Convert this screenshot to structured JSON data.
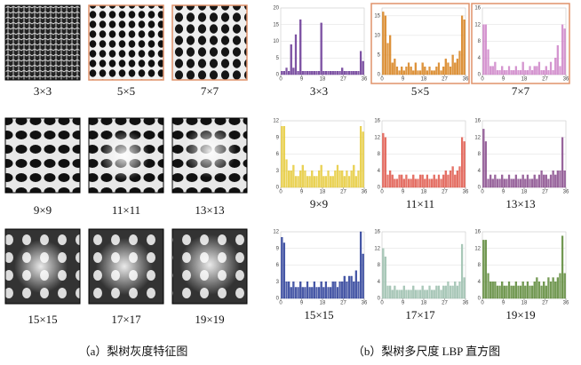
{
  "images": [
    "3×3",
    "5×5",
    "7×7",
    "9×9",
    "11×11",
    "13×13",
    "15×15",
    "17×17",
    "19×19"
  ],
  "captions": [
    "（a）梨树灰度特征图",
    "（b）梨树多尺度 LBP 直方图"
  ],
  "chart_data": [
    {
      "type": "histogram",
      "title": "3×3",
      "color": "#6b3a96",
      "bins": [
        0,
        1,
        2,
        3,
        4,
        5,
        6,
        7,
        8,
        9,
        10,
        11,
        12,
        13,
        14,
        15,
        16,
        17,
        18,
        19,
        20,
        21,
        22,
        23,
        24,
        25,
        26,
        27,
        28,
        29,
        30,
        31,
        32,
        33,
        34,
        35,
        36
      ],
      "values": [
        1,
        1,
        2,
        1,
        9,
        2,
        12,
        1,
        16.5,
        1,
        1,
        1,
        1,
        1,
        1,
        1,
        1,
        15.5,
        1,
        1,
        1,
        1,
        1,
        1,
        1,
        1,
        2,
        1,
        1,
        1,
        1,
        1,
        1,
        1,
        7,
        4
      ],
      "xlim": [
        0,
        36
      ],
      "xticks": [
        0,
        9,
        18,
        27,
        36
      ],
      "ylim": [
        0,
        20
      ],
      "yticks": [
        0,
        5,
        10,
        15,
        20
      ],
      "grid": true
    },
    {
      "type": "histogram",
      "title": "5×5",
      "color": "#d8831f",
      "border": "#e0926a",
      "bins": [
        0,
        1,
        2,
        3,
        4,
        5,
        6,
        7,
        8,
        9,
        10,
        11,
        12,
        13,
        14,
        15,
        16,
        17,
        18,
        19,
        20,
        21,
        22,
        23,
        24,
        25,
        26,
        27,
        28,
        29,
        30,
        31,
        32,
        33,
        34,
        35,
        36
      ],
      "values": [
        16,
        15,
        8,
        10,
        3,
        4,
        2,
        1,
        2,
        1,
        2,
        3,
        2,
        1,
        3,
        1,
        1,
        3,
        2,
        1,
        2,
        1,
        1,
        2,
        3,
        1,
        2,
        4,
        3,
        2,
        5,
        3,
        4,
        6,
        15,
        14
      ],
      "xlim": [
        0,
        36
      ],
      "xticks": [
        0,
        9,
        18,
        27,
        36
      ],
      "ylim": [
        0,
        17
      ],
      "yticks": [
        0,
        5,
        10,
        15
      ],
      "grid": true
    },
    {
      "type": "histogram",
      "title": "7×7",
      "color": "#cf86c9",
      "border": "#e0926a",
      "bins": [
        0,
        1,
        2,
        3,
        4,
        5,
        6,
        7,
        8,
        9,
        10,
        11,
        12,
        13,
        14,
        15,
        16,
        17,
        18,
        19,
        20,
        21,
        22,
        23,
        24,
        25,
        26,
        27,
        28,
        29,
        30,
        31,
        32,
        33,
        34,
        35,
        36
      ],
      "values": [
        12,
        12,
        6,
        2,
        2,
        3,
        1,
        1,
        2,
        1,
        1,
        2,
        1,
        1,
        2,
        1,
        1,
        3,
        1,
        1,
        2,
        1,
        2,
        2,
        3,
        1,
        1,
        2,
        1,
        3,
        1,
        4,
        7,
        2,
        12,
        11
      ],
      "xlim": [
        0,
        36
      ],
      "xticks": [
        0,
        9,
        18,
        27,
        36
      ],
      "ylim": [
        0,
        16
      ],
      "yticks": [
        0,
        4,
        8,
        12,
        16
      ],
      "grid": true
    },
    {
      "type": "histogram",
      "title": "9×9",
      "color": "#e6cb3c",
      "bins": [
        0,
        1,
        2,
        3,
        4,
        5,
        6,
        7,
        8,
        9,
        10,
        11,
        12,
        13,
        14,
        15,
        16,
        17,
        18,
        19,
        20,
        21,
        22,
        23,
        24,
        25,
        26,
        27,
        28,
        29,
        30,
        31,
        32,
        33,
        34,
        35,
        36
      ],
      "values": [
        11,
        11,
        5,
        3,
        3,
        4,
        2,
        2,
        3,
        4,
        3,
        2,
        2,
        3,
        2,
        2,
        3,
        4,
        2,
        2,
        3,
        2,
        2,
        3,
        4,
        3,
        3,
        2,
        3,
        2,
        3,
        4,
        2,
        3,
        11,
        10
      ],
      "xlim": [
        0,
        36
      ],
      "xticks": [
        0,
        9,
        18,
        27,
        36
      ],
      "ylim": [
        0,
        12
      ],
      "yticks": [
        0,
        3,
        6,
        9,
        12
      ],
      "grid": true
    },
    {
      "type": "histogram",
      "title": "11×11",
      "color": "#e05a4e",
      "bins": [
        0,
        1,
        2,
        3,
        4,
        5,
        6,
        7,
        8,
        9,
        10,
        11,
        12,
        13,
        14,
        15,
        16,
        17,
        18,
        19,
        20,
        21,
        22,
        23,
        24,
        25,
        26,
        27,
        28,
        29,
        30,
        31,
        32,
        33,
        34,
        35,
        36
      ],
      "values": [
        13,
        12,
        3,
        4,
        3,
        2,
        2,
        3,
        3,
        2,
        3,
        2,
        2,
        3,
        2,
        2,
        3,
        3,
        2,
        3,
        2,
        2,
        3,
        2,
        3,
        2,
        3,
        4,
        3,
        4,
        5,
        3,
        4,
        5,
        12,
        11
      ],
      "xlim": [
        0,
        36
      ],
      "xticks": [
        0,
        9,
        18,
        27,
        36
      ],
      "ylim": [
        0,
        16
      ],
      "yticks": [
        0,
        4,
        8,
        12,
        16
      ],
      "grid": true
    },
    {
      "type": "histogram",
      "title": "13×13",
      "color": "#8a4f8e",
      "bins": [
        0,
        1,
        2,
        3,
        4,
        5,
        6,
        7,
        8,
        9,
        10,
        11,
        12,
        13,
        14,
        15,
        16,
        17,
        18,
        19,
        20,
        21,
        22,
        23,
        24,
        25,
        26,
        27,
        28,
        29,
        30,
        31,
        32,
        33,
        34,
        35,
        36
      ],
      "values": [
        14,
        11,
        2,
        3,
        2,
        3,
        2,
        2,
        3,
        2,
        2,
        3,
        2,
        2,
        3,
        2,
        2,
        3,
        2,
        3,
        2,
        2,
        3,
        2,
        3,
        4,
        3,
        3,
        2,
        3,
        4,
        3,
        4,
        4,
        12,
        4
      ],
      "xlim": [
        0,
        36
      ],
      "xticks": [
        0,
        9,
        18,
        27,
        36
      ],
      "ylim": [
        0,
        16
      ],
      "yticks": [
        0,
        4,
        8,
        12,
        16
      ],
      "grid": true
    },
    {
      "type": "histogram",
      "title": "15×15",
      "color": "#2c3f99",
      "bins": [
        0,
        1,
        2,
        3,
        4,
        5,
        6,
        7,
        8,
        9,
        10,
        11,
        12,
        13,
        14,
        15,
        16,
        17,
        18,
        19,
        20,
        21,
        22,
        23,
        24,
        25,
        26,
        27,
        28,
        29,
        30,
        31,
        32,
        33,
        34,
        35,
        36
      ],
      "values": [
        11,
        10,
        3,
        3,
        2,
        3,
        2,
        2,
        3,
        2,
        2,
        3,
        2,
        2,
        3,
        2,
        2,
        3,
        2,
        3,
        2,
        2,
        3,
        3,
        2,
        3,
        3,
        4,
        3,
        4,
        4,
        3,
        5,
        3,
        12,
        8
      ],
      "xlim": [
        0,
        36
      ],
      "xticks": [
        0,
        9,
        18,
        27,
        36
      ],
      "ylim": [
        0,
        12
      ],
      "yticks": [
        0,
        3,
        6,
        9,
        12
      ],
      "grid": true
    },
    {
      "type": "histogram",
      "title": "17×17",
      "color": "#9cbfae",
      "bins": [
        0,
        1,
        2,
        3,
        4,
        5,
        6,
        7,
        8,
        9,
        10,
        11,
        12,
        13,
        14,
        15,
        16,
        17,
        18,
        19,
        20,
        21,
        22,
        23,
        24,
        25,
        26,
        27,
        28,
        29,
        30,
        31,
        32,
        33,
        34,
        35,
        36
      ],
      "values": [
        12,
        10,
        3,
        3,
        2,
        3,
        2,
        2,
        2,
        3,
        2,
        2,
        2,
        3,
        2,
        2,
        2,
        3,
        2,
        2,
        3,
        2,
        2,
        3,
        3,
        2,
        3,
        3,
        4,
        3,
        3,
        4,
        3,
        4,
        13,
        5
      ],
      "xlim": [
        0,
        36
      ],
      "xticks": [
        0,
        9,
        18,
        27,
        36
      ],
      "ylim": [
        0,
        16
      ],
      "yticks": [
        0,
        4,
        8,
        12,
        16
      ],
      "grid": true
    },
    {
      "type": "histogram",
      "title": "19×19",
      "color": "#5e8a3a",
      "bins": [
        0,
        1,
        2,
        3,
        4,
        5,
        6,
        7,
        8,
        9,
        10,
        11,
        12,
        13,
        14,
        15,
        16,
        17,
        18,
        19,
        20,
        21,
        22,
        23,
        24,
        25,
        26,
        27,
        28,
        29,
        30,
        31,
        32,
        33,
        34,
        35,
        36
      ],
      "values": [
        14,
        14,
        6,
        4,
        4,
        4,
        3,
        3,
        4,
        3,
        3,
        4,
        3,
        3,
        4,
        3,
        3,
        4,
        3,
        4,
        3,
        3,
        4,
        5,
        4,
        3,
        4,
        3,
        5,
        4,
        5,
        4,
        5,
        6,
        15,
        6
      ],
      "xlim": [
        0,
        36
      ],
      "xticks": [
        0,
        9,
        18,
        27,
        36
      ],
      "ylim": [
        0,
        16
      ],
      "yticks": [
        0,
        4,
        8,
        12,
        16
      ],
      "grid": true
    }
  ]
}
